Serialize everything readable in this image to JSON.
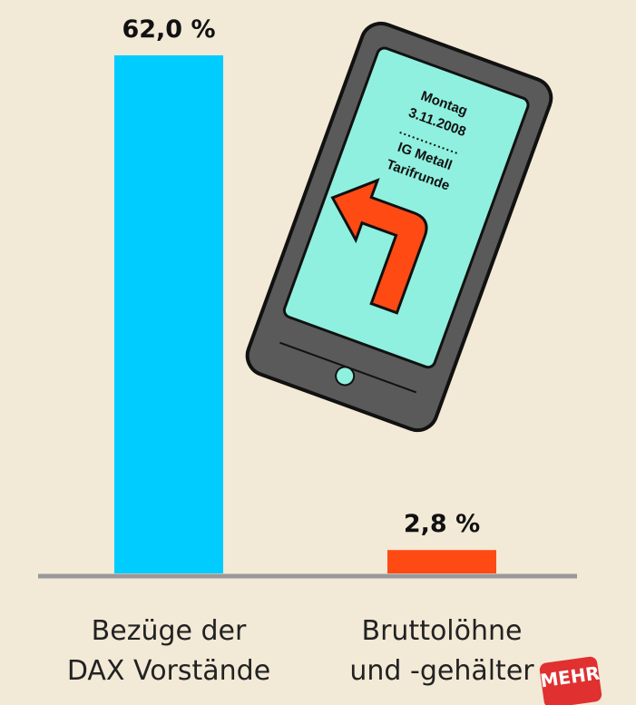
{
  "chart_data": {
    "type": "bar",
    "categories": [
      "Bezüge der\nDAX Vorstände",
      "Bruttolöhne\nund -gehälter"
    ],
    "values": [
      62.0,
      2.8
    ],
    "value_labels": [
      "62,0 %",
      "2,8 %"
    ],
    "colors": [
      "#00ccff",
      "#ff4a14"
    ],
    "phone_text": [
      "Montag",
      "3.11.2008",
      "IG Metall",
      "Tarifrunde"
    ],
    "badge": "MEHR"
  }
}
